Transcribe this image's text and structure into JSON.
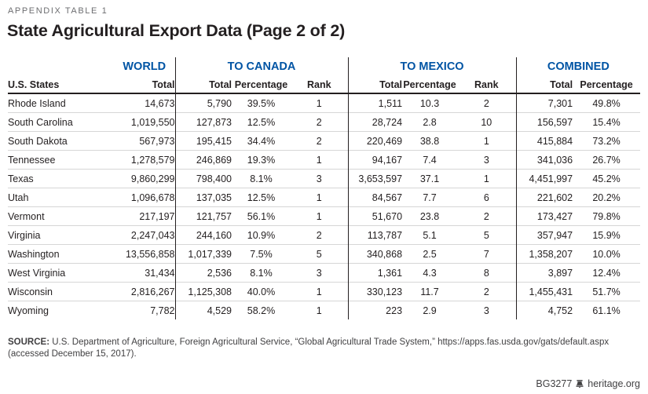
{
  "page": {
    "eyebrow": "APPENDIX TABLE 1",
    "title": "State Agricultural Export Data (Page 2 of 2)",
    "source_label": "SOURCE:",
    "source_text": " U.S. Department of Agriculture, Foreign Agricultural Service, “Global Agricultural Trade System,” https://apps.fas.usda.gov/gats/default.aspx (accessed December 15, 2017).",
    "footer_id": "BG3277",
    "footer_site": "heritage.org",
    "footer_icon": "liberty-bell-icon"
  },
  "colors": {
    "accent_blue": "#0054a4",
    "text_dark": "#231f20",
    "text_gray": "#6d6e71",
    "rule_dark": "#231f20",
    "rule_light": "#d6d6d6"
  },
  "table": {
    "groups": [
      {
        "label": "",
        "span": 1
      },
      {
        "label": "WORLD",
        "span": 1
      },
      {
        "label": "TO CANADA",
        "span": 3
      },
      {
        "label": "TO MEXICO",
        "span": 3
      },
      {
        "label": "COMBINED",
        "span": 2
      }
    ],
    "columns": [
      "U.S. States",
      "Total",
      "Total",
      "Percentage",
      "Rank",
      "Total",
      "Percentage",
      "Rank",
      "Total",
      "Percentage"
    ],
    "rows": [
      [
        "Rhode Island",
        "14,673",
        "5,790",
        "39.5%",
        "1",
        "1,511",
        "10.3",
        "2",
        "7,301",
        "49.8%"
      ],
      [
        "South Carolina",
        "1,019,550",
        "127,873",
        "12.5%",
        "2",
        "28,724",
        "2.8",
        "10",
        "156,597",
        "15.4%"
      ],
      [
        "South Dakota",
        "567,973",
        "195,415",
        "34.4%",
        "2",
        "220,469",
        "38.8",
        "1",
        "415,884",
        "73.2%"
      ],
      [
        "Tennessee",
        "1,278,579",
        "246,869",
        "19.3%",
        "1",
        "94,167",
        "7.4",
        "3",
        "341,036",
        "26.7%"
      ],
      [
        "Texas",
        "9,860,299",
        "798,400",
        "8.1%",
        "3",
        "3,653,597",
        "37.1",
        "1",
        "4,451,997",
        "45.2%"
      ],
      [
        "Utah",
        "1,096,678",
        "137,035",
        "12.5%",
        "1",
        "84,567",
        "7.7",
        "6",
        "221,602",
        "20.2%"
      ],
      [
        "Vermont",
        "217,197",
        "121,757",
        "56.1%",
        "1",
        "51,670",
        "23.8",
        "2",
        "173,427",
        "79.8%"
      ],
      [
        "Virginia",
        "2,247,043",
        "244,160",
        "10.9%",
        "2",
        "113,787",
        "5.1",
        "5",
        "357,947",
        "15.9%"
      ],
      [
        "Washington",
        "13,556,858",
        "1,017,339",
        "7.5%",
        "5",
        "340,868",
        "2.5",
        "7",
        "1,358,207",
        "10.0%"
      ],
      [
        "West Virginia",
        "31,434",
        "2,536",
        "8.1%",
        "3",
        "1,361",
        "4.3",
        "8",
        "3,897",
        "12.4%"
      ],
      [
        "Wisconsin",
        "2,816,267",
        "1,125,308",
        "40.0%",
        "1",
        "330,123",
        "11.7",
        "2",
        "1,455,431",
        "51.7%"
      ],
      [
        "Wyoming",
        "7,782",
        "4,529",
        "58.2%",
        "1",
        "223",
        "2.9",
        "3",
        "4,752",
        "61.1%"
      ]
    ]
  }
}
